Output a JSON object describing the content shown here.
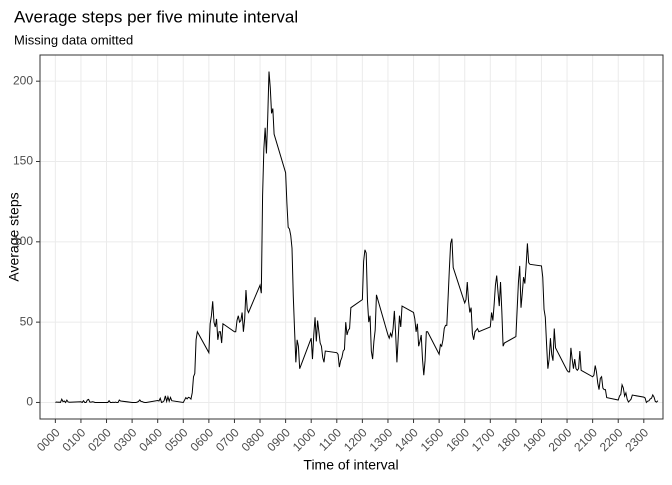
{
  "chart_data": {
    "type": "line",
    "title": "Average steps per five minute interval",
    "subtitle": "Missing data omitted",
    "x_label": "Time of interval",
    "y_label": "Average steps",
    "color": "#000000",
    "grid": true,
    "xlim": [
      -60,
      2375
    ],
    "ylim": [
      -10.3,
      216.3
    ],
    "yticks": [
      0,
      50,
      100,
      150,
      200
    ],
    "xticks": [
      {
        "value": 0,
        "label": "0000"
      },
      {
        "value": 100,
        "label": "0100"
      },
      {
        "value": 200,
        "label": "0200"
      },
      {
        "value": 300,
        "label": "0300"
      },
      {
        "value": 400,
        "label": "0400"
      },
      {
        "value": 500,
        "label": "0500"
      },
      {
        "value": 600,
        "label": "0600"
      },
      {
        "value": 700,
        "label": "0700"
      },
      {
        "value": 800,
        "label": "0800"
      },
      {
        "value": 900,
        "label": "0900"
      },
      {
        "value": 1000,
        "label": "1000"
      },
      {
        "value": 1100,
        "label": "1100"
      },
      {
        "value": 1200,
        "label": "1200"
      },
      {
        "value": 1300,
        "label": "1300"
      },
      {
        "value": 1400,
        "label": "1400"
      },
      {
        "value": 1500,
        "label": "1500"
      },
      {
        "value": 1600,
        "label": "1600"
      },
      {
        "value": 1700,
        "label": "1700"
      },
      {
        "value": 1800,
        "label": "1800"
      },
      {
        "value": 1900,
        "label": "1900"
      },
      {
        "value": 2000,
        "label": "2000"
      },
      {
        "value": 2100,
        "label": "2100"
      },
      {
        "value": 2200,
        "label": "2200"
      },
      {
        "value": 2300,
        "label": "2300"
      }
    ],
    "x": [
      0,
      5,
      10,
      15,
      20,
      25,
      30,
      35,
      40,
      45,
      50,
      55,
      100,
      105,
      110,
      115,
      120,
      125,
      130,
      135,
      140,
      145,
      150,
      155,
      200,
      205,
      210,
      215,
      220,
      225,
      230,
      235,
      240,
      245,
      250,
      255,
      300,
      305,
      310,
      315,
      320,
      325,
      330,
      335,
      340,
      345,
      350,
      355,
      400,
      405,
      410,
      415,
      420,
      425,
      430,
      435,
      440,
      445,
      450,
      455,
      500,
      505,
      510,
      515,
      520,
      525,
      530,
      535,
      540,
      545,
      550,
      555,
      600,
      605,
      610,
      615,
      620,
      625,
      630,
      635,
      640,
      645,
      650,
      655,
      700,
      705,
      710,
      715,
      720,
      725,
      730,
      735,
      740,
      745,
      750,
      755,
      800,
      805,
      810,
      815,
      820,
      825,
      830,
      835,
      840,
      845,
      850,
      855,
      900,
      905,
      910,
      915,
      920,
      925,
      930,
      935,
      940,
      945,
      950,
      955,
      1000,
      1005,
      1010,
      1015,
      1020,
      1025,
      1030,
      1035,
      1040,
      1045,
      1050,
      1055,
      1100,
      1105,
      1110,
      1115,
      1120,
      1125,
      1130,
      1135,
      1140,
      1145,
      1150,
      1155,
      1200,
      1205,
      1210,
      1215,
      1220,
      1225,
      1230,
      1235,
      1240,
      1245,
      1250,
      1255,
      1300,
      1305,
      1310,
      1315,
      1320,
      1325,
      1330,
      1335,
      1340,
      1345,
      1350,
      1355,
      1400,
      1405,
      1410,
      1415,
      1420,
      1425,
      1430,
      1435,
      1440,
      1445,
      1450,
      1455,
      1500,
      1505,
      1510,
      1515,
      1520,
      1525,
      1530,
      1535,
      1540,
      1545,
      1550,
      1555,
      1600,
      1605,
      1610,
      1615,
      1620,
      1625,
      1630,
      1635,
      1640,
      1645,
      1650,
      1655,
      1700,
      1705,
      1710,
      1715,
      1720,
      1725,
      1730,
      1735,
      1740,
      1745,
      1750,
      1755,
      1800,
      1805,
      1810,
      1815,
      1820,
      1825,
      1830,
      1835,
      1840,
      1845,
      1850,
      1855,
      1900,
      1905,
      1910,
      1915,
      1920,
      1925,
      1930,
      1935,
      1940,
      1945,
      1950,
      1955,
      2000,
      2005,
      2010,
      2015,
      2020,
      2025,
      2030,
      2035,
      2040,
      2045,
      2050,
      2055,
      2100,
      2105,
      2110,
      2115,
      2120,
      2125,
      2130,
      2135,
      2140,
      2145,
      2150,
      2155,
      2200,
      2205,
      2210,
      2215,
      2220,
      2225,
      2230,
      2235,
      2240,
      2245,
      2250,
      2255,
      2300,
      2305,
      2310,
      2315,
      2320,
      2325,
      2330,
      2335,
      2340,
      2345,
      2350,
      2355
    ],
    "values": [
      0,
      0.3,
      0.1,
      0.2,
      0,
      2,
      0.5,
      0.9,
      0,
      1.5,
      0.3,
      0.1,
      0.4,
      0,
      1.1,
      0,
      0,
      1.5,
      1.9,
      0.2,
      0.2,
      0.4,
      0.3,
      0,
      0,
      0,
      1.1,
      0,
      0,
      0.1,
      0,
      0.2,
      0,
      0,
      1.5,
      0.9,
      0,
      0,
      0,
      0,
      0.2,
      0.6,
      1.6,
      0.6,
      0.5,
      0.1,
      0,
      0,
      1.2,
      0.9,
      2.6,
      0,
      0.3,
      1.1,
      4.1,
      0.7,
      3.5,
      0.8,
      3.1,
      1.1,
      0,
      1.5,
      3,
      2.2,
      3.2,
      2.9,
      2.1,
      6,
      16,
      18,
      39,
      44,
      31,
      49,
      54,
      63,
      50,
      47,
      52,
      39,
      44,
      44,
      37,
      49,
      44,
      44,
      51,
      54,
      50,
      51,
      56,
      44,
      52,
      70,
      58,
      56,
      73,
      68,
      129,
      158,
      171,
      155,
      177,
      206,
      196,
      180,
      183,
      167,
      143,
      124,
      109,
      108,
      104,
      96,
      66,
      45,
      25,
      39,
      35,
      21,
      40,
      27,
      42,
      53,
      38,
      51,
      44,
      37,
      35,
      28,
      25,
      32,
      31,
      30,
      22,
      26,
      28,
      32,
      33,
      50,
      42,
      45,
      46,
      59,
      64,
      88,
      95,
      93,
      63,
      50,
      54,
      32,
      27,
      38,
      45,
      67,
      42,
      40,
      43,
      41,
      46,
      57,
      43,
      25,
      40,
      54,
      47,
      60,
      56,
      52,
      44,
      49,
      35,
      38,
      42,
      27,
      17,
      26,
      44,
      44,
      30,
      36,
      35,
      39,
      46,
      48,
      48,
      65,
      83,
      99,
      102,
      84,
      62,
      64,
      75,
      63,
      56,
      59,
      43,
      39,
      44,
      45,
      46,
      44,
      47,
      56,
      51,
      61,
      73,
      79,
      69,
      60,
      75,
      57,
      35,
      37,
      41,
      58,
      75,
      85,
      59,
      68,
      78,
      74,
      85,
      99,
      87,
      86,
      85,
      78,
      58,
      53,
      36,
      21,
      27,
      40,
      30,
      26,
      46,
      34,
      20,
      19,
      19,
      34,
      27,
      21,
      27,
      21,
      20,
      21,
      32,
      20,
      16,
      17,
      23,
      19,
      12,
      8,
      15,
      16,
      9,
      8,
      8,
      3,
      1.5,
      4,
      5,
      11,
      9,
      4,
      6,
      2,
      0.3,
      1.1,
      2,
      4.6,
      3.3,
      2.8,
      0,
      0.8,
      1,
      2.2,
      2.6,
      4.7,
      3.3,
      0.6,
      0.2,
      1.1
    ]
  }
}
